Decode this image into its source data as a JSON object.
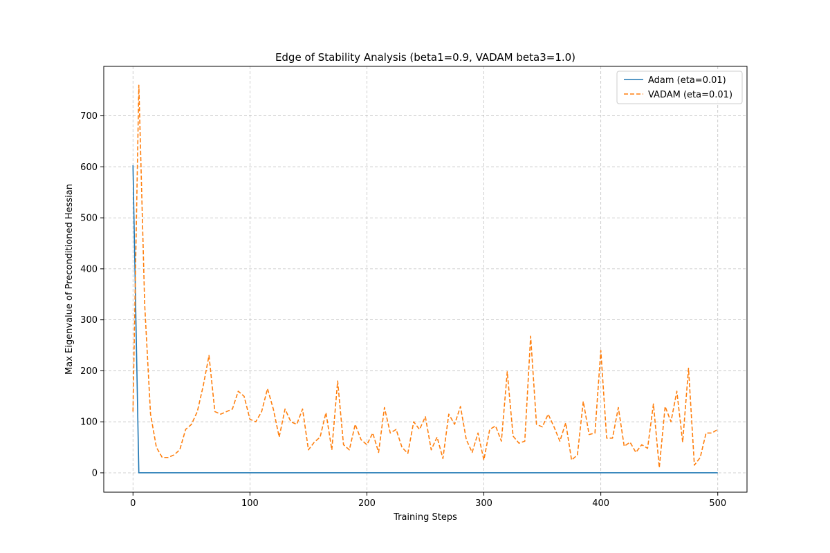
{
  "chart_data": {
    "type": "line",
    "title": "Edge of Stability Analysis (beta1=0.9, VADAM beta3=1.0)",
    "xlabel": "Training Steps",
    "ylabel": "Max Eigenvalue of Preconditioned Hessian",
    "xlim": [
      -25,
      525
    ],
    "ylim": [
      -38,
      797
    ],
    "xticks": [
      0,
      100,
      200,
      300,
      400,
      500
    ],
    "yticks": [
      0,
      100,
      200,
      300,
      400,
      500,
      600,
      700
    ],
    "grid": true,
    "legend_position": "top-right",
    "series": [
      {
        "name": "Adam (eta=0.01)",
        "color": "#1f77b4",
        "style": "solid",
        "x": [
          0,
          5,
          10,
          500
        ],
        "y": [
          603,
          0,
          0,
          0
        ]
      },
      {
        "name": "VADAM (eta=0.01)",
        "color": "#ff7f0e",
        "style": "dashed",
        "x": [
          0,
          5,
          10,
          15,
          20,
          25,
          30,
          35,
          40,
          45,
          50,
          55,
          60,
          65,
          70,
          75,
          80,
          85,
          90,
          95,
          100,
          105,
          110,
          115,
          120,
          125,
          130,
          135,
          140,
          145,
          150,
          155,
          160,
          165,
          170,
          175,
          180,
          185,
          190,
          195,
          200,
          205,
          210,
          215,
          220,
          225,
          230,
          235,
          240,
          245,
          250,
          255,
          260,
          265,
          270,
          275,
          280,
          285,
          290,
          295,
          300,
          305,
          310,
          315,
          320,
          325,
          330,
          335,
          340,
          345,
          350,
          355,
          360,
          365,
          370,
          375,
          380,
          385,
          390,
          395,
          400,
          405,
          410,
          415,
          420,
          425,
          430,
          435,
          440,
          445,
          450,
          455,
          460,
          465,
          470,
          475,
          480,
          485,
          490,
          495,
          500
        ],
        "y": [
          120,
          760,
          330,
          115,
          50,
          30,
          30,
          35,
          45,
          85,
          95,
          120,
          170,
          230,
          120,
          115,
          120,
          125,
          160,
          150,
          105,
          100,
          120,
          165,
          125,
          70,
          125,
          100,
          95,
          125,
          45,
          60,
          70,
          118,
          45,
          180,
          55,
          45,
          95,
          65,
          55,
          78,
          40,
          128,
          78,
          85,
          50,
          38,
          100,
          85,
          110,
          45,
          70,
          28,
          115,
          95,
          130,
          65,
          40,
          78,
          25,
          85,
          92,
          62,
          198,
          72,
          58,
          62,
          268,
          95,
          90,
          115,
          90,
          62,
          98,
          25,
          35,
          140,
          75,
          78,
          240,
          68,
          68,
          128,
          52,
          60,
          40,
          55,
          48,
          135,
          10,
          130,
          100,
          160,
          60,
          205,
          15,
          30,
          78,
          78,
          85
        ]
      }
    ]
  }
}
